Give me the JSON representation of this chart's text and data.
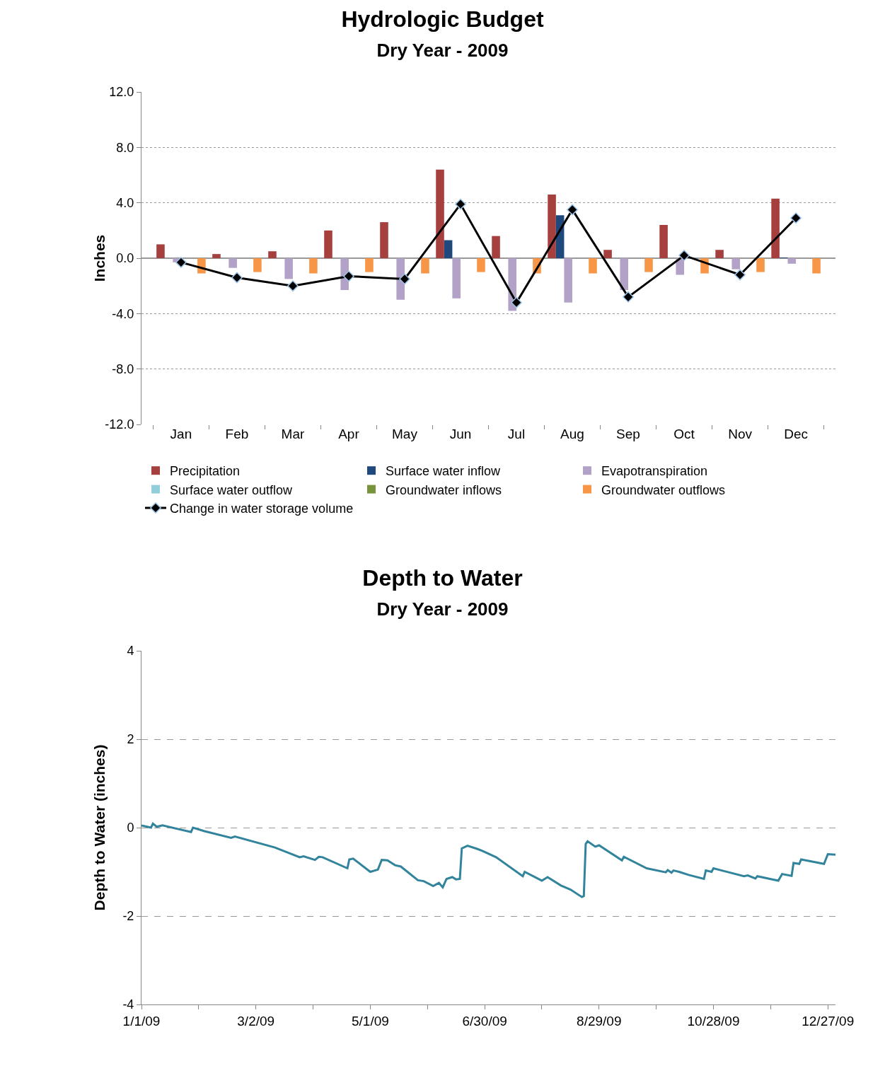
{
  "chart_data": [
    {
      "type": "bar",
      "title": "Hydrologic Budget",
      "subtitle": "Dry Year - 2009",
      "ylabel": "Inches",
      "categories": [
        "Jan",
        "Feb",
        "Mar",
        "Apr",
        "May",
        "Jun",
        "Jul",
        "Aug",
        "Sep",
        "Oct",
        "Nov",
        "Dec"
      ],
      "series": [
        {
          "name": "Precipitation",
          "color": "#a5403e",
          "values": [
            1.0,
            0.3,
            0.5,
            2.0,
            2.6,
            6.4,
            1.6,
            4.6,
            0.6,
            2.4,
            0.6,
            4.3
          ]
        },
        {
          "name": "Surface water inflow",
          "color": "#1f497d",
          "values": [
            0,
            0,
            0,
            0,
            0,
            1.3,
            0,
            3.1,
            0,
            0,
            0,
            0.05
          ]
        },
        {
          "name": "Evapotranspiration",
          "color": "#b3a2c7",
          "values": [
            -0.3,
            -0.7,
            -1.5,
            -2.3,
            -3.0,
            -2.9,
            -3.8,
            -3.2,
            -2.3,
            -1.2,
            -0.8,
            -0.4
          ]
        },
        {
          "name": "Surface water outflow",
          "color": "#92cddc",
          "values": [
            0,
            0,
            0,
            0,
            0,
            0,
            0,
            0,
            0,
            0,
            0,
            0
          ]
        },
        {
          "name": "Groundwater inflows",
          "color": "#77933c",
          "values": [
            0,
            0,
            0,
            0,
            0,
            0,
            0,
            0,
            0,
            0,
            0,
            0
          ]
        },
        {
          "name": "Groundwater outflows",
          "color": "#f79646",
          "values": [
            -1.1,
            -1.0,
            -1.1,
            -1.0,
            -1.1,
            -1.0,
            -1.1,
            -1.1,
            -1.0,
            -1.1,
            -1.0,
            -1.1
          ]
        },
        {
          "name": "Change in water storage volume",
          "color": "#000000",
          "type": "line",
          "values": [
            -0.3,
            -1.4,
            -2.0,
            -1.3,
            -1.5,
            3.9,
            -3.2,
            3.5,
            -2.8,
            0.2,
            -1.2,
            2.9
          ]
        }
      ],
      "marker": "diamond",
      "ylim": [
        -12,
        12
      ],
      "yticks": [
        {
          "value": -12,
          "label": "-12.0"
        },
        {
          "value": -8,
          "label": "-8.0"
        },
        {
          "value": -4,
          "label": "-4.0"
        },
        {
          "value": 0,
          "label": "0.0"
        },
        {
          "value": 4,
          "label": "4.0"
        },
        {
          "value": 8,
          "label": "8.0"
        },
        {
          "value": 12,
          "label": "12.0"
        }
      ],
      "grid": "y",
      "legend": "bottom"
    },
    {
      "type": "line",
      "title": "Depth to Water",
      "subtitle": "Dry Year - 2009",
      "ylabel": "Depth to Water (inches)",
      "x": [
        "2009-01-01",
        "2009-01-06",
        "2009-01-07",
        "2009-01-09",
        "2009-01-12",
        "2009-01-27",
        "2009-01-28",
        "2009-02-03",
        "2009-02-17",
        "2009-02-19",
        "2009-03-12",
        "2009-03-25",
        "2009-03-27",
        "2009-04-02",
        "2009-04-04",
        "2009-04-06",
        "2009-04-19",
        "2009-04-20",
        "2009-04-22",
        "2009-05-01",
        "2009-05-05",
        "2009-05-07",
        "2009-05-10",
        "2009-05-14",
        "2009-05-17",
        "2009-05-26",
        "2009-05-29",
        "2009-06-03",
        "2009-06-06",
        "2009-06-08",
        "2009-06-10",
        "2009-06-13",
        "2009-06-15",
        "2009-06-17",
        "2009-06-18",
        "2009-06-21",
        "2009-06-26",
        "2009-06-29",
        "2009-07-06",
        "2009-07-20",
        "2009-07-21",
        "2009-07-30",
        "2009-08-02",
        "2009-08-09",
        "2009-08-14",
        "2009-08-20",
        "2009-08-21",
        "2009-08-22",
        "2009-08-23",
        "2009-08-27",
        "2009-08-29",
        "2009-09-10",
        "2009-09-11",
        "2009-09-23",
        "2009-10-03",
        "2009-10-04",
        "2009-10-06",
        "2009-10-07",
        "2009-10-10",
        "2009-10-15",
        "2009-10-23",
        "2009-10-24",
        "2009-10-27",
        "2009-10-28",
        "2009-11-05",
        "2009-11-13",
        "2009-11-15",
        "2009-11-19",
        "2009-11-20",
        "2009-12-01",
        "2009-12-03",
        "2009-12-08",
        "2009-12-09",
        "2009-12-12",
        "2009-12-13",
        "2009-12-25",
        "2009-12-27",
        "2009-12-31"
      ],
      "series": [
        {
          "color": "#31849b",
          "values": [
            0.05,
            0.0,
            0.09,
            0.02,
            0.05,
            -0.1,
            0.0,
            -0.08,
            -0.23,
            -0.2,
            -0.45,
            -0.67,
            -0.65,
            -0.73,
            -0.66,
            -0.67,
            -0.92,
            -0.72,
            -0.7,
            -1.0,
            -0.95,
            -0.73,
            -0.74,
            -0.85,
            -0.88,
            -1.19,
            -1.21,
            -1.32,
            -1.25,
            -1.35,
            -1.16,
            -1.12,
            -1.17,
            -1.16,
            -0.47,
            -0.41,
            -0.48,
            -0.53,
            -0.67,
            -1.1,
            -1.0,
            -1.2,
            -1.12,
            -1.31,
            -1.4,
            -1.57,
            -1.55,
            -0.37,
            -0.31,
            -0.43,
            -0.4,
            -0.74,
            -0.66,
            -0.92,
            -1.01,
            -0.96,
            -1.02,
            -0.97,
            -1.0,
            -1.07,
            -1.16,
            -0.97,
            -1.0,
            -0.92,
            -1.01,
            -1.1,
            -1.08,
            -1.15,
            -1.1,
            -1.2,
            -1.05,
            -1.09,
            -0.8,
            -0.82,
            -0.72,
            -0.82,
            -0.6,
            -0.61
          ]
        }
      ],
      "xlim": [
        "2009-01-01",
        "2009-12-31"
      ],
      "xticks": [
        {
          "value": "2009-01-01",
          "label": "1/1/09"
        },
        {
          "value": "2009-01-31",
          "label": null
        },
        {
          "value": "2009-03-02",
          "label": "3/2/09"
        },
        {
          "value": "2009-04-01",
          "label": null
        },
        {
          "value": "2009-05-01",
          "label": "5/1/09"
        },
        {
          "value": "2009-05-31",
          "label": null
        },
        {
          "value": "2009-06-30",
          "label": "6/30/09"
        },
        {
          "value": "2009-07-30",
          "label": null
        },
        {
          "value": "2009-08-29",
          "label": "8/29/09"
        },
        {
          "value": "2009-09-28",
          "label": null
        },
        {
          "value": "2009-10-28",
          "label": "10/28/09"
        },
        {
          "value": "2009-11-27",
          "label": null
        },
        {
          "value": "2009-12-27",
          "label": "12/27/09"
        }
      ],
      "ylim": [
        -4,
        4
      ],
      "yticks": [
        -4,
        -2,
        0,
        2,
        4
      ],
      "grid": "y",
      "line_style": "solid"
    }
  ]
}
